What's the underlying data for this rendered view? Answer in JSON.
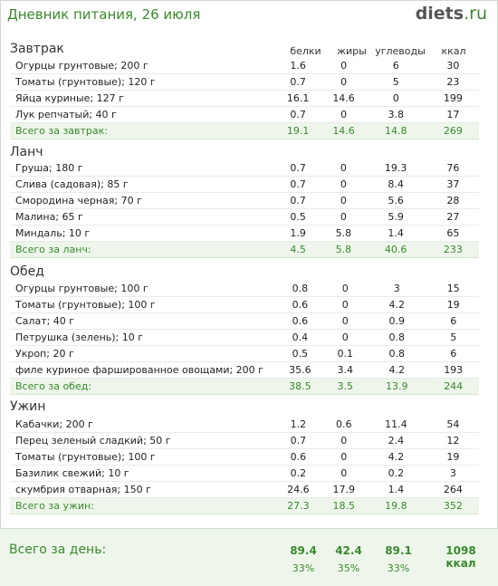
{
  "header": {
    "title": "Дневник питания, 26 июля",
    "logo_main": "diets",
    "logo_suffix": ".ru"
  },
  "columns": {
    "protein": "белки",
    "fat": "жиры",
    "carbs": "углеводы",
    "kcal": "ккал"
  },
  "meals": [
    {
      "name": "Завтрак",
      "items": [
        {
          "name": "Огурцы грунтовые; 200 г",
          "protein": "1.6",
          "fat": "0",
          "carbs": "6",
          "kcal": "30"
        },
        {
          "name": "Томаты (грунтовые); 120 г",
          "protein": "0.7",
          "fat": "0",
          "carbs": "5",
          "kcal": "23"
        },
        {
          "name": "Яйца куриные; 127 г",
          "protein": "16.1",
          "fat": "14.6",
          "carbs": "0",
          "kcal": "199"
        },
        {
          "name": "Лук репчатый; 40 г",
          "protein": "0.7",
          "fat": "0",
          "carbs": "3.8",
          "kcal": "17"
        }
      ],
      "total": {
        "name": "Всего за завтрак:",
        "protein": "19.1",
        "fat": "14.6",
        "carbs": "14.8",
        "kcal": "269"
      }
    },
    {
      "name": "Ланч",
      "items": [
        {
          "name": "Груша; 180 г",
          "protein": "0.7",
          "fat": "0",
          "carbs": "19.3",
          "kcal": "76"
        },
        {
          "name": "Слива (садовая); 85 г",
          "protein": "0.7",
          "fat": "0",
          "carbs": "8.4",
          "kcal": "37"
        },
        {
          "name": "Смородина черная; 70 г",
          "protein": "0.7",
          "fat": "0",
          "carbs": "5.6",
          "kcal": "28"
        },
        {
          "name": "Малина; 65 г",
          "protein": "0.5",
          "fat": "0",
          "carbs": "5.9",
          "kcal": "27"
        },
        {
          "name": "Миндаль; 10 г",
          "protein": "1.9",
          "fat": "5.8",
          "carbs": "1.4",
          "kcal": "65"
        }
      ],
      "total": {
        "name": "Всего за ланч:",
        "protein": "4.5",
        "fat": "5.8",
        "carbs": "40.6",
        "kcal": "233"
      }
    },
    {
      "name": "Обед",
      "items": [
        {
          "name": "Огурцы грунтовые; 100 г",
          "protein": "0.8",
          "fat": "0",
          "carbs": "3",
          "kcal": "15"
        },
        {
          "name": "Томаты (грунтовые); 100 г",
          "protein": "0.6",
          "fat": "0",
          "carbs": "4.2",
          "kcal": "19"
        },
        {
          "name": "Салат; 40 г",
          "protein": "0.6",
          "fat": "0",
          "carbs": "0.9",
          "kcal": "6"
        },
        {
          "name": "Петрушка (зелень); 10 г",
          "protein": "0.4",
          "fat": "0",
          "carbs": "0.8",
          "kcal": "5"
        },
        {
          "name": "Укроп; 20 г",
          "protein": "0.5",
          "fat": "0.1",
          "carbs": "0.8",
          "kcal": "6"
        },
        {
          "name": "филе куриное фаршированное овощами; 200 г",
          "protein": "35.6",
          "fat": "3.4",
          "carbs": "4.2",
          "kcal": "193"
        }
      ],
      "total": {
        "name": "Всего за обед:",
        "protein": "38.5",
        "fat": "3.5",
        "carbs": "13.9",
        "kcal": "244"
      }
    },
    {
      "name": "Ужин",
      "items": [
        {
          "name": "Кабачки; 200 г",
          "protein": "1.2",
          "fat": "0.6",
          "carbs": "11.4",
          "kcal": "54"
        },
        {
          "name": "Перец зеленый сладкий; 50 г",
          "protein": "0.7",
          "fat": "0",
          "carbs": "2.4",
          "kcal": "12"
        },
        {
          "name": "Томаты (грунтовые); 100 г",
          "protein": "0.6",
          "fat": "0",
          "carbs": "4.2",
          "kcal": "19"
        },
        {
          "name": "Базилик свежий; 10 г",
          "protein": "0.2",
          "fat": "0",
          "carbs": "0.2",
          "kcal": "3"
        },
        {
          "name": "скумбрия отварная; 150 г",
          "protein": "24.6",
          "fat": "17.9",
          "carbs": "1.4",
          "kcal": "264"
        }
      ],
      "total": {
        "name": "Всего за ужин:",
        "protein": "27.3",
        "fat": "18.5",
        "carbs": "19.8",
        "kcal": "352"
      }
    }
  ],
  "day": {
    "label": "Всего за день:",
    "protein": "89.4",
    "fat": "42.4",
    "carbs": "89.1",
    "kcal": "1098 ккал",
    "protein_pct": "33%",
    "fat_pct": "35%",
    "carbs_pct": "33%"
  },
  "colors": {
    "accent": "#3a8a2c",
    "total_bg": "#eef6ec"
  }
}
